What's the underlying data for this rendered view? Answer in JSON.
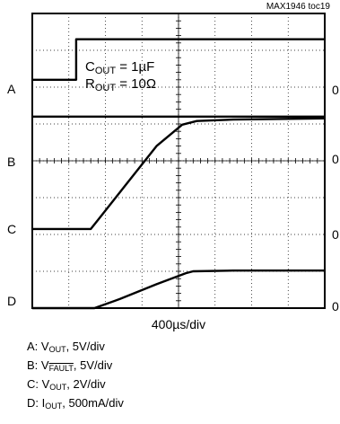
{
  "figure_id": "MAX1946 toc19",
  "chart_data": {
    "type": "line",
    "xlabel": "400µs/div",
    "x_divisions": 8,
    "y_divisions": 8,
    "grid": true,
    "annotation": {
      "cout_label": "C",
      "cout_sub": "OUT",
      "cout_value": " = 1µF",
      "rout_label": "R",
      "rout_sub": "OUT",
      "rout_value": " = 10Ω"
    },
    "channel_labels": [
      "A",
      "B",
      "C",
      "D"
    ],
    "zero_markers": [
      "0",
      "0",
      "0",
      "0"
    ],
    "series": [
      {
        "name": "A",
        "x": [
          0,
          1.2,
          1.2,
          8
        ],
        "y": [
          6.2,
          6.2,
          7.3,
          7.3
        ]
      },
      {
        "name": "B",
        "x": [
          0,
          8
        ],
        "y": [
          5.2,
          5.2
        ]
      },
      {
        "name": "C",
        "x": [
          0,
          1.6,
          1.8,
          2.6,
          3.4,
          4.1,
          4.5,
          5.5,
          8
        ],
        "y": [
          2.15,
          2.15,
          2.4,
          3.4,
          4.4,
          4.98,
          5.08,
          5.12,
          5.15
        ]
      },
      {
        "name": "D",
        "x": [
          0,
          1.7,
          2.4,
          3.4,
          4.2,
          4.4,
          5.5,
          8
        ],
        "y": [
          0,
          0,
          0.25,
          0.65,
          0.95,
          1.0,
          1.02,
          1.02
        ]
      }
    ]
  },
  "legend": [
    {
      "prefix": "A: V",
      "sub": "OUT",
      "bar": "",
      "suffix": ", 5V/div"
    },
    {
      "prefix": "B: V",
      "sub": "",
      "bar": "FAULT",
      "suffix": ", 5V/div"
    },
    {
      "prefix": "C: V",
      "sub": "OUT",
      "bar": "",
      "suffix": ", 2V/div"
    },
    {
      "prefix": "D: I",
      "sub": "OUT",
      "bar": "",
      "suffix": ", 500mA/div"
    }
  ]
}
